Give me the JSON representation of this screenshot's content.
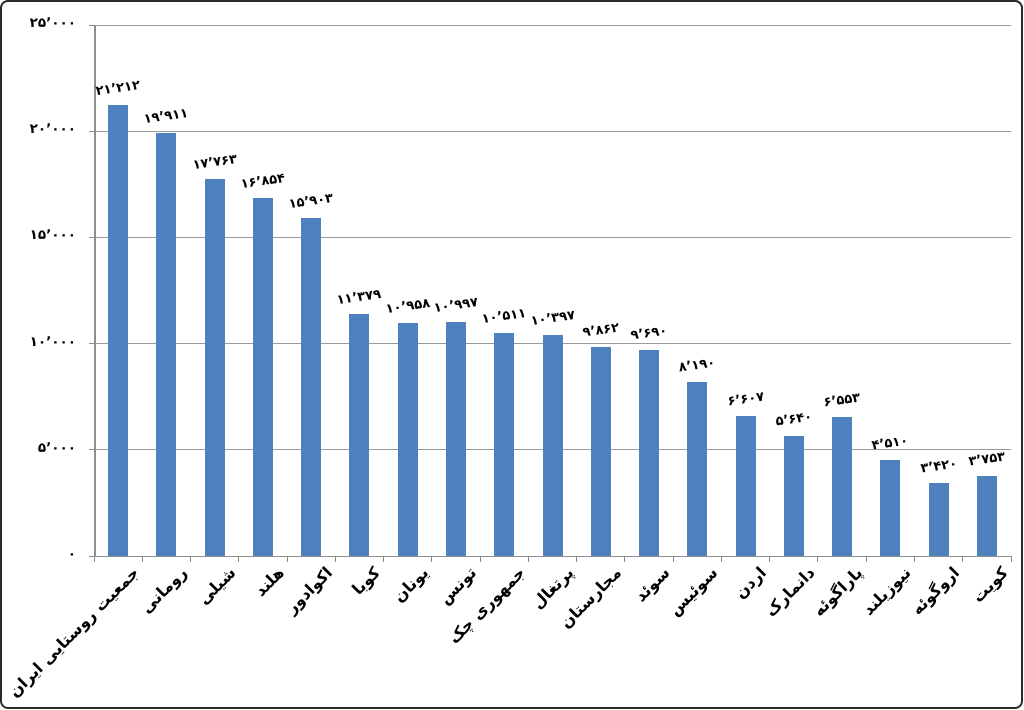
{
  "chart_data": {
    "type": "bar",
    "title": "",
    "xlabel": "",
    "ylabel": "",
    "legend_position": "none",
    "grid": true,
    "ylim": [
      0,
      25000
    ],
    "bar_color": "#4E81BD",
    "gridline_color": "#9A9A9A",
    "axis_color": "#8E8E8E",
    "text_color": "#000000",
    "y_ticks": [
      {
        "value": 25000,
        "label": "۲۵٬۰۰۰"
      },
      {
        "value": 20000,
        "label": "۲۰٬۰۰۰"
      },
      {
        "value": 15000,
        "label": "۱۵٬۰۰۰"
      },
      {
        "value": 10000,
        "label": "۱۰٬۰۰۰"
      },
      {
        "value": 5000,
        "label": "۵٬۰۰۰"
      },
      {
        "value": 0,
        "label": "۰"
      }
    ],
    "categories": [
      "جمعیت روستایی ایران",
      "رومانی",
      "شیلی",
      "هلند",
      "اکوادور",
      "کوبا",
      "یونان",
      "تونس",
      "جمهوری چک",
      "پرتغال",
      "مجارستان",
      "سوئد",
      "سوئیس",
      "اردن",
      "دانمارک",
      "پاراگوئه",
      "نیوزیلند",
      "اروگوئه",
      "کویت"
    ],
    "values": [
      21212,
      19911,
      17763,
      16854,
      15903,
      11379,
      10958,
      10997,
      10511,
      10397,
      9862,
      9690,
      8190,
      6607,
      5640,
      6553,
      4510,
      3420,
      3753
    ],
    "value_labels": [
      "۲۱٬۲۱۲",
      "۱۹٬۹۱۱",
      "۱۷٬۷۶۳",
      "۱۶٬۸۵۴",
      "۱۵٬۹۰۳",
      "۱۱٬۳۷۹",
      "۱۰٬۹۵۸",
      "۱۰٬۹۹۷",
      "۱۰٬۵۱۱",
      "۱۰٬۳۹۷",
      "۹٬۸۶۲",
      "۹٬۶۹۰",
      "۸٬۱۹۰",
      "۶٬۶۰۷",
      "۵٬۶۴۰",
      "۶٬۵۵۳",
      "۴٬۵۱۰",
      "۳٬۴۲۰",
      "۳٬۷۵۳"
    ]
  }
}
